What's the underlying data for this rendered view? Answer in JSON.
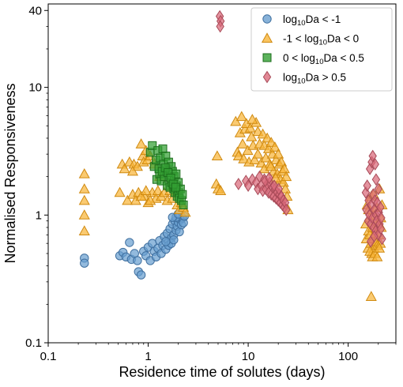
{
  "chart_data": {
    "type": "scatter",
    "xlabel": "Residence time of solutes (days)",
    "ylabel": "Normalised Responsiveness",
    "xscale": "log",
    "yscale": "log",
    "xlim": [
      0.1,
      300
    ],
    "ylim": [
      0.1,
      45
    ],
    "x_ticks": [
      0.1,
      1,
      10,
      100
    ],
    "x_tick_labels": [
      "0.1",
      "1",
      "10",
      "100"
    ],
    "y_ticks": [
      0.1,
      1,
      10,
      40
    ],
    "y_tick_labels": [
      "0.1",
      "1",
      "10",
      "40"
    ],
    "grid": false,
    "legend_position": "top-right",
    "series": [
      {
        "name": "log10Da < -1",
        "legend_parts": [
          [
            "log",
            false
          ],
          [
            "10",
            true
          ],
          [
            "Da < -1",
            false
          ]
        ],
        "marker": "circle",
        "color": "#6a9fd0",
        "edge": "#3f6f9f",
        "points": [
          [
            0.23,
            0.46
          ],
          [
            0.23,
            0.42
          ],
          [
            0.52,
            0.48
          ],
          [
            0.56,
            0.51
          ],
          [
            0.6,
            0.47
          ],
          [
            0.65,
            0.61
          ],
          [
            0.68,
            0.45
          ],
          [
            0.73,
            0.5
          ],
          [
            0.78,
            0.44
          ],
          [
            0.8,
            0.36
          ],
          [
            0.85,
            0.34
          ],
          [
            0.9,
            0.52
          ],
          [
            0.95,
            0.48
          ],
          [
            1.0,
            0.56
          ],
          [
            1.05,
            0.44
          ],
          [
            1.1,
            0.6
          ],
          [
            1.15,
            0.52
          ],
          [
            1.2,
            0.47
          ],
          [
            1.25,
            0.55
          ],
          [
            1.3,
            0.63
          ],
          [
            1.35,
            0.5
          ],
          [
            1.4,
            0.58
          ],
          [
            1.45,
            0.68
          ],
          [
            1.5,
            0.54
          ],
          [
            1.55,
            0.72
          ],
          [
            1.6,
            0.62
          ],
          [
            1.65,
            0.78
          ],
          [
            1.7,
            0.66
          ],
          [
            1.75,
            0.85
          ],
          [
            1.8,
            0.7
          ],
          [
            1.85,
            0.9
          ],
          [
            1.9,
            0.76
          ],
          [
            1.95,
            0.82
          ],
          [
            2.0,
            0.88
          ],
          [
            2.05,
            0.74
          ],
          [
            2.1,
            0.92
          ],
          [
            2.15,
            0.84
          ],
          [
            2.2,
            0.95
          ],
          [
            2.25,
            0.87
          ],
          [
            2.3,
            0.98
          ],
          [
            1.6,
            0.58
          ],
          [
            1.7,
            0.6
          ],
          [
            1.8,
            0.64
          ],
          [
            1.5,
            0.62
          ],
          [
            1.9,
            0.96
          ],
          [
            1.75,
            0.96
          ],
          [
            2.0,
            1.02
          ]
        ]
      },
      {
        "name": "-1 < log10Da < 0",
        "legend_parts": [
          [
            "-1 < log",
            false
          ],
          [
            "10",
            true
          ],
          [
            "Da < 0",
            false
          ]
        ],
        "marker": "triangle",
        "color": "#f8b53a",
        "edge": "#d08a10",
        "points": [
          [
            0.23,
            2.1
          ],
          [
            0.23,
            1.6
          ],
          [
            0.23,
            1.3
          ],
          [
            0.23,
            1.0
          ],
          [
            0.23,
            0.75
          ],
          [
            0.52,
            1.5
          ],
          [
            0.55,
            2.5
          ],
          [
            0.58,
            2.3
          ],
          [
            0.62,
            1.3
          ],
          [
            0.65,
            2.6
          ],
          [
            0.7,
            1.45
          ],
          [
            0.72,
            2.5
          ],
          [
            0.75,
            1.3
          ],
          [
            0.78,
            2.4
          ],
          [
            0.8,
            1.5
          ],
          [
            0.85,
            3.6
          ],
          [
            0.88,
            2.9
          ],
          [
            0.9,
            2.6
          ],
          [
            0.92,
            1.4
          ],
          [
            0.95,
            3.2
          ],
          [
            0.98,
            2.7
          ],
          [
            1.0,
            1.25
          ],
          [
            1.05,
            2.9
          ],
          [
            1.1,
            1.5
          ],
          [
            1.15,
            2.5
          ],
          [
            1.2,
            1.35
          ],
          [
            1.25,
            1.55
          ],
          [
            1.3,
            2.0
          ],
          [
            1.35,
            1.4
          ],
          [
            1.45,
            1.5
          ],
          [
            1.55,
            1.3
          ],
          [
            1.65,
            1.55
          ],
          [
            1.75,
            1.35
          ],
          [
            1.85,
            1.5
          ],
          [
            1.95,
            1.2
          ],
          [
            2.05,
            1.1
          ],
          [
            2.15,
            1.25
          ],
          [
            2.25,
            1.15
          ],
          [
            2.35,
            1.05
          ],
          [
            0.85,
            1.4
          ],
          [
            0.95,
            1.55
          ],
          [
            1.05,
            1.3
          ],
          [
            0.7,
            2.2
          ],
          [
            4.9,
            2.9
          ],
          [
            4.8,
            1.75
          ],
          [
            5.0,
            1.6
          ],
          [
            5.3,
            1.55
          ],
          [
            7.5,
            5.4
          ],
          [
            7.8,
            3.1
          ],
          [
            8.0,
            2.9
          ],
          [
            8.3,
            4.4
          ],
          [
            8.6,
            5.9
          ],
          [
            8.8,
            3.6
          ],
          [
            9.0,
            2.75
          ],
          [
            9.3,
            4.7
          ],
          [
            9.6,
            5.2
          ],
          [
            9.9,
            3.2
          ],
          [
            10.2,
            2.6
          ],
          [
            10.5,
            4.8
          ],
          [
            10.8,
            4.1
          ],
          [
            11.2,
            3.5
          ],
          [
            11.6,
            2.7
          ],
          [
            12.0,
            5.3
          ],
          [
            12.5,
            4.5
          ],
          [
            13.0,
            3.6
          ],
          [
            13.5,
            2.55
          ],
          [
            14.0,
            4.3
          ],
          [
            14.5,
            3.5
          ],
          [
            15.0,
            2.8
          ],
          [
            15.5,
            4.0
          ],
          [
            16.0,
            3.3
          ],
          [
            16.5,
            2.5
          ],
          [
            17.0,
            3.7
          ],
          [
            17.5,
            3.0
          ],
          [
            18.0,
            2.2
          ],
          [
            18.5,
            3.4
          ],
          [
            19.0,
            2.7
          ],
          [
            19.5,
            2.1
          ],
          [
            20.0,
            3.0
          ],
          [
            20.5,
            2.5
          ],
          [
            21.0,
            1.9
          ],
          [
            21.5,
            2.6
          ],
          [
            22.0,
            2.2
          ],
          [
            22.5,
            1.8
          ],
          [
            23.0,
            2.3
          ],
          [
            23.5,
            1.6
          ],
          [
            24.0,
            2.0
          ],
          [
            24.5,
            1.4
          ],
          [
            25.0,
            1.1
          ],
          [
            11.0,
            5.6
          ],
          [
            12.5,
            3.0
          ],
          [
            14.5,
            2.3
          ],
          [
            16.8,
            2.4
          ],
          [
            18.8,
            1.95
          ],
          [
            150,
            0.85
          ],
          [
            152,
            0.65
          ],
          [
            155,
            1.2
          ],
          [
            158,
            0.55
          ],
          [
            160,
            0.75
          ],
          [
            163,
            0.95
          ],
          [
            165,
            0.7
          ],
          [
            168,
            0.6
          ],
          [
            170,
            1.4
          ],
          [
            172,
            0.5
          ],
          [
            175,
            0.8
          ],
          [
            178,
            0.65
          ],
          [
            180,
            1.0
          ],
          [
            182,
            0.55
          ],
          [
            185,
            0.72
          ],
          [
            188,
            0.9
          ],
          [
            190,
            0.62
          ],
          [
            193,
            1.15
          ],
          [
            196,
            0.58
          ],
          [
            200,
            0.85
          ],
          [
            203,
            0.7
          ],
          [
            206,
            1.6
          ],
          [
            210,
            0.6
          ],
          [
            214,
            0.8
          ],
          [
            218,
            1.2
          ],
          [
            170,
            0.23
          ],
          [
            165,
            0.52
          ],
          [
            175,
            0.47
          ],
          [
            185,
            0.5
          ],
          [
            195,
            0.47
          ],
          [
            205,
            0.55
          ],
          [
            160,
            1.1
          ],
          [
            180,
            1.45
          ],
          [
            212,
            0.95
          ]
        ]
      },
      {
        "name": "0 < log10Da < 0.5",
        "legend_parts": [
          [
            "0 < log",
            false
          ],
          [
            "10",
            true
          ],
          [
            "Da < 0.5",
            false
          ]
        ],
        "marker": "square",
        "color": "#33a033",
        "edge": "#1c6e1c",
        "points": [
          [
            1.05,
            3.1
          ],
          [
            1.1,
            3.5
          ],
          [
            1.15,
            2.4
          ],
          [
            1.2,
            2.7
          ],
          [
            1.22,
            1.9
          ],
          [
            1.25,
            3.2
          ],
          [
            1.3,
            2.1
          ],
          [
            1.32,
            2.8
          ],
          [
            1.35,
            1.85
          ],
          [
            1.4,
            3.3
          ],
          [
            1.42,
            2.5
          ],
          [
            1.45,
            2.0
          ],
          [
            1.5,
            2.9
          ],
          [
            1.52,
            2.2
          ],
          [
            1.55,
            1.7
          ],
          [
            1.6,
            2.6
          ],
          [
            1.62,
            2.0
          ],
          [
            1.65,
            1.65
          ],
          [
            1.7,
            2.4
          ],
          [
            1.72,
            1.8
          ],
          [
            1.75,
            2.2
          ],
          [
            1.8,
            1.6
          ],
          [
            1.82,
            2.0
          ],
          [
            1.85,
            1.5
          ],
          [
            1.9,
            2.1
          ],
          [
            1.92,
            1.7
          ],
          [
            1.95,
            1.4
          ],
          [
            2.0,
            1.8
          ],
          [
            2.02,
            1.5
          ],
          [
            2.05,
            1.35
          ],
          [
            2.1,
            1.6
          ],
          [
            2.15,
            1.3
          ],
          [
            2.2,
            1.45
          ],
          [
            2.25,
            1.2
          ],
          [
            1.28,
            2.3
          ],
          [
            1.38,
            2.2
          ],
          [
            1.48,
            2.35
          ],
          [
            1.58,
            2.15
          ],
          [
            1.68,
            1.95
          ],
          [
            1.78,
            1.75
          ],
          [
            1.88,
            1.65
          ]
        ]
      },
      {
        "name": "log10Da > 0.5",
        "legend_parts": [
          [
            "log",
            false
          ],
          [
            "10",
            true
          ],
          [
            "Da > 0.5",
            false
          ]
        ],
        "marker": "diamond",
        "color": "#d96a7a",
        "edge": "#a84a58",
        "points": [
          [
            5.2,
            36
          ],
          [
            5.3,
            33
          ],
          [
            5.25,
            30
          ],
          [
            8.0,
            1.75
          ],
          [
            9.5,
            1.85
          ],
          [
            10.0,
            1.7
          ],
          [
            11.0,
            1.9
          ],
          [
            12.0,
            1.8
          ],
          [
            12.5,
            1.6
          ],
          [
            13.0,
            2.0
          ],
          [
            13.5,
            1.7
          ],
          [
            14.0,
            1.55
          ],
          [
            14.5,
            1.9
          ],
          [
            15.0,
            1.6
          ],
          [
            15.5,
            1.75
          ],
          [
            16.0,
            1.5
          ],
          [
            16.5,
            1.8
          ],
          [
            17.0,
            1.45
          ],
          [
            17.5,
            1.65
          ],
          [
            18.0,
            1.4
          ],
          [
            18.5,
            1.6
          ],
          [
            19.0,
            1.35
          ],
          [
            19.5,
            1.5
          ],
          [
            20.0,
            1.3
          ],
          [
            20.5,
            1.45
          ],
          [
            21.0,
            1.25
          ],
          [
            21.5,
            1.4
          ],
          [
            22.0,
            1.2
          ],
          [
            22.5,
            1.3
          ],
          [
            23.0,
            1.15
          ],
          [
            23.5,
            1.25
          ],
          [
            24.0,
            1.1
          ],
          [
            14.8,
            1.85
          ],
          [
            16.2,
            1.95
          ],
          [
            18.2,
            1.7
          ],
          [
            20.2,
            1.6
          ],
          [
            150,
            1.5
          ],
          [
            152,
            1.1
          ],
          [
            155,
            1.7
          ],
          [
            158,
            0.9
          ],
          [
            160,
            1.3
          ],
          [
            163,
            1.0
          ],
          [
            165,
            2.3
          ],
          [
            168,
            0.85
          ],
          [
            170,
            1.2
          ],
          [
            172,
            2.6
          ],
          [
            175,
            0.95
          ],
          [
            178,
            1.45
          ],
          [
            180,
            0.8
          ],
          [
            182,
            1.1
          ],
          [
            185,
            1.3
          ],
          [
            188,
            0.75
          ],
          [
            190,
            1.0
          ],
          [
            193,
            0.9
          ],
          [
            196,
            1.25
          ],
          [
            200,
            0.7
          ],
          [
            203,
            1.05
          ],
          [
            206,
            0.85
          ],
          [
            210,
            1.15
          ],
          [
            214,
            0.95
          ],
          [
            218,
            0.65
          ],
          [
            176,
            2.9
          ],
          [
            186,
            2.5
          ],
          [
            190,
            1.9
          ],
          [
            200,
            1.6
          ],
          [
            168,
            0.62
          ],
          [
            212,
            0.78
          ],
          [
            182,
            0.68
          ]
        ]
      }
    ]
  }
}
